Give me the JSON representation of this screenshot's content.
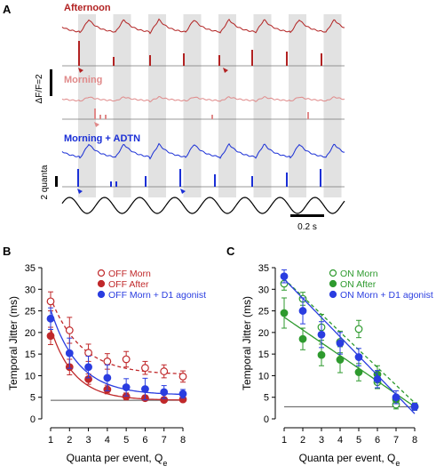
{
  "panels": {
    "a": "A",
    "b": "B",
    "c": "C"
  },
  "traces": {
    "afternoon_label": "Afternoon",
    "morning_label": "Morning",
    "morning_adtn_label": "Morning + ADTN",
    "scale_df": "ΔF/F=2",
    "scale_quanta": "2 quanta",
    "scale_time": "0.2 s"
  },
  "colors": {
    "afternoon": "#b22222",
    "morning": "#e08a8a",
    "adtn": "#1a2fd6",
    "off_morn": "#c0282a",
    "off_after": "#c0282a",
    "off_agonist": "#2a3de0",
    "on_morn": "#2e9a2e",
    "on_after": "#2e9a2e",
    "on_agonist": "#2a3de0",
    "stripe": "#e2e2e2"
  },
  "chart_data": [
    {
      "type": "scatter",
      "panel": "B",
      "xlabel": "Quanta per event, Q",
      "xlabel_sub": "e",
      "ylabel": "Temporal Jitter (ms)",
      "xlim": [
        1,
        8
      ],
      "ylim": [
        0,
        35
      ],
      "xticks": [
        1,
        2,
        3,
        4,
        5,
        6,
        7,
        8
      ],
      "yticks": [
        0,
        5,
        10,
        15,
        20,
        25,
        30,
        35
      ],
      "grid": false,
      "legend_position": "top-right",
      "reference_line_y": 4.3,
      "x": [
        1,
        2,
        3,
        4,
        5,
        6,
        7,
        8
      ],
      "series": [
        {
          "name": "OFF Morn",
          "marker": "open-circle",
          "line": "dashed",
          "values": [
            27.2,
            20.5,
            15.3,
            13.3,
            13.8,
            11.8,
            11.0,
            9.8
          ],
          "errors": [
            2.2,
            3.0,
            2.0,
            1.8,
            1.8,
            1.5,
            1.5,
            1.3
          ]
        },
        {
          "name": "OFF After",
          "marker": "filled-circle",
          "line": "solid",
          "values": [
            19.2,
            12.0,
            9.2,
            6.8,
            5.2,
            4.8,
            4.4,
            4.5
          ],
          "errors": [
            2.0,
            1.8,
            1.2,
            1.0,
            0.8,
            0.6,
            0.5,
            0.5
          ]
        },
        {
          "name": "OFF Morn + D1 agonist",
          "marker": "filled-circle",
          "line": "solid",
          "values": [
            23.2,
            15.2,
            12.0,
            9.5,
            7.3,
            6.9,
            6.2,
            5.8
          ],
          "errors": [
            2.5,
            3.5,
            2.5,
            3.0,
            2.0,
            2.5,
            1.5,
            1.0
          ]
        }
      ]
    },
    {
      "type": "scatter",
      "panel": "C",
      "xlabel": "Quanta per event, Q",
      "xlabel_sub": "e",
      "ylabel": "Temporal Jitter (ms)",
      "xlim": [
        1,
        8
      ],
      "ylim": [
        0,
        35
      ],
      "xticks": [
        1,
        2,
        3,
        4,
        5,
        6,
        7,
        8
      ],
      "yticks": [
        0,
        5,
        10,
        15,
        20,
        25,
        30,
        35
      ],
      "grid": false,
      "legend_position": "top-right",
      "reference_line_y": 2.8,
      "x": [
        1,
        2,
        3,
        4,
        5,
        6,
        7,
        8
      ],
      "series": [
        {
          "name": "ON Morn",
          "marker": "open-circle",
          "line": "dashed",
          "values": [
            31.3,
            27.8,
            21.2,
            17.8,
            20.8,
            8.5,
            3.3,
            2.8
          ],
          "errors": [
            1.5,
            1.5,
            3.0,
            2.5,
            2.0,
            1.5,
            1.0,
            0.8
          ]
        },
        {
          "name": "ON After",
          "marker": "filled-circle",
          "line": "solid",
          "values": [
            24.5,
            18.5,
            14.8,
            13.7,
            10.8,
            10.3,
            4.5,
            2.9
          ],
          "errors": [
            3.5,
            2.5,
            2.5,
            3.0,
            2.0,
            2.0,
            1.0,
            0.8
          ]
        },
        {
          "name": "ON Morn + D1 agonist",
          "marker": "filled-circle",
          "line": "solid",
          "values": [
            33.0,
            25.0,
            19.5,
            17.5,
            14.3,
            9.2,
            5.0,
            2.8
          ],
          "errors": [
            1.5,
            3.0,
            3.0,
            2.5,
            2.0,
            2.0,
            1.5,
            0.8
          ]
        }
      ]
    }
  ]
}
